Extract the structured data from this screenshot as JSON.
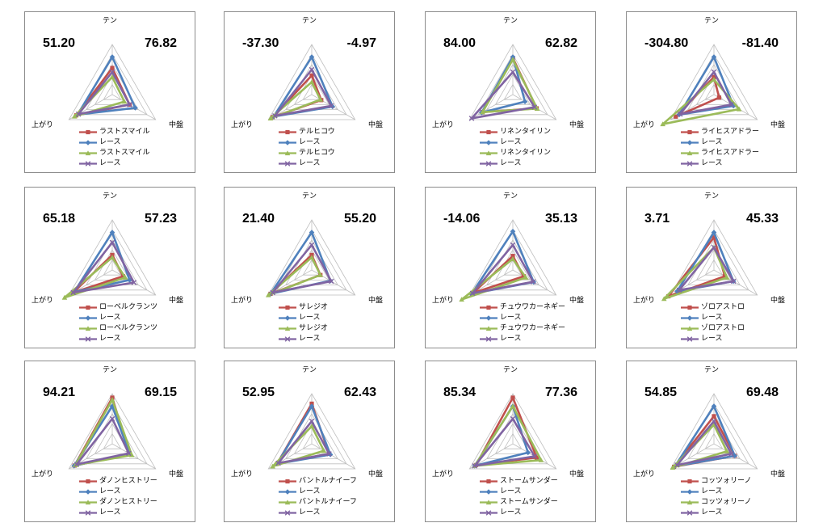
{
  "axis_labels": {
    "top": "テン",
    "bottom_left": "上がり",
    "bottom_right": "中盤"
  },
  "series_colors": [
    "#c0504d",
    "#4f81bd",
    "#9bbb59",
    "#8064a2"
  ],
  "series_markers": [
    "square",
    "diamond",
    "triangle",
    "x"
  ],
  "race_series_name": "レース",
  "chart_data": [
    {
      "type": "radar",
      "title": "",
      "axes": [
        "テン",
        "中盤",
        "上がり"
      ],
      "rmax": 100,
      "left_value": "51.20",
      "right_value": "76.82",
      "horse": "ラストスマイル",
      "series": [
        {
          "name": "ラストスマイル",
          "values": [
            53,
            40,
            83
          ]
        },
        {
          "name": "レース",
          "values": [
            75,
            53,
            80
          ]
        },
        {
          "name": "ラストスマイル",
          "values": [
            35,
            28,
            87
          ]
        },
        {
          "name": "レース",
          "values": [
            45,
            40,
            78
          ]
        }
      ]
    },
    {
      "type": "radar",
      "title": "",
      "axes": [
        "テン",
        "中盤",
        "上がり"
      ],
      "rmax": 100,
      "left_value": "-37.30",
      "right_value": "-4.97",
      "horse": "テルヒコウ",
      "series": [
        {
          "name": "テルヒコウ",
          "values": [
            38,
            22,
            90
          ]
        },
        {
          "name": "レース",
          "values": [
            75,
            48,
            88
          ]
        },
        {
          "name": "テルヒコウ",
          "values": [
            25,
            20,
            95
          ]
        },
        {
          "name": "レース",
          "values": [
            50,
            45,
            85
          ]
        }
      ]
    },
    {
      "type": "radar",
      "title": "",
      "axes": [
        "テン",
        "中盤",
        "上がり"
      ],
      "rmax": 100,
      "left_value": "84.00",
      "right_value": "62.82",
      "horse": "リネンタイリン",
      "series": [
        {
          "name": "リネンタイリン",
          "values": [
            73,
            55,
            70
          ]
        },
        {
          "name": "レース",
          "values": [
            75,
            28,
            72
          ]
        },
        {
          "name": "リネンタイリン",
          "values": [
            70,
            56,
            70
          ]
        },
        {
          "name": "レース",
          "values": [
            45,
            50,
            95
          ]
        }
      ]
    },
    {
      "type": "radar",
      "title": "",
      "axes": [
        "テン",
        "中盤",
        "上がり"
      ],
      "rmax": 100,
      "left_value": "-304.80",
      "right_value": "-81.40",
      "horse": "ライヒスアドラー",
      "series": [
        {
          "name": "ライヒスアドラー",
          "values": [
            35,
            12,
            88
          ]
        },
        {
          "name": "レース",
          "values": [
            75,
            45,
            80
          ]
        },
        {
          "name": "ライヒスアドラー",
          "values": [
            30,
            58,
            118
          ]
        },
        {
          "name": "レース",
          "values": [
            45,
            40,
            78
          ]
        }
      ]
    },
    {
      "type": "radar",
      "title": "",
      "axes": [
        "テン",
        "中盤",
        "上がり"
      ],
      "rmax": 100,
      "left_value": "65.18",
      "right_value": "57.23",
      "horse": "ローベルクランツ",
      "series": [
        {
          "name": "ローベルクランツ",
          "values": [
            30,
            25,
            90
          ]
        },
        {
          "name": "レース",
          "values": [
            75,
            40,
            88
          ]
        },
        {
          "name": "ローベルクランツ",
          "values": [
            25,
            30,
            110
          ]
        },
        {
          "name": "レース",
          "values": [
            55,
            50,
            90
          ]
        }
      ]
    },
    {
      "type": "radar",
      "title": "",
      "axes": [
        "テン",
        "中盤",
        "上がり"
      ],
      "rmax": 100,
      "left_value": "21.40",
      "right_value": "55.20",
      "horse": "サレジオ",
      "series": [
        {
          "name": "サレジオ",
          "values": [
            30,
            20,
            95
          ]
        },
        {
          "name": "レース",
          "values": [
            75,
            43,
            95
          ]
        },
        {
          "name": "サレジオ",
          "values": [
            25,
            20,
            100
          ]
        },
        {
          "name": "レース",
          "values": [
            50,
            45,
            90
          ]
        }
      ]
    },
    {
      "type": "radar",
      "title": "",
      "axes": [
        "テン",
        "中盤",
        "上がり"
      ],
      "rmax": 100,
      "left_value": "-14.06",
      "right_value": "35.13",
      "horse": "チュウワカーネギー",
      "series": [
        {
          "name": "チュウワカーネギー",
          "values": [
            28,
            25,
            92
          ]
        },
        {
          "name": "レース",
          "values": [
            77,
            48,
            95
          ]
        },
        {
          "name": "チュウワカーネギー",
          "values": [
            22,
            30,
            118
          ]
        },
        {
          "name": "レース",
          "values": [
            50,
            47,
            93
          ]
        }
      ]
    },
    {
      "type": "radar",
      "title": "",
      "axes": [
        "テン",
        "中盤",
        "上がり"
      ],
      "rmax": 100,
      "left_value": "3.71",
      "right_value": "45.33",
      "horse": "ゾロアストロ",
      "series": [
        {
          "name": "ゾロアストロ",
          "values": [
            65,
            25,
            105
          ]
        },
        {
          "name": "レース",
          "values": [
            75,
            45,
            85
          ]
        },
        {
          "name": "ゾロアストロ",
          "values": [
            45,
            30,
            115
          ]
        },
        {
          "name": "レース",
          "values": [
            45,
            45,
            80
          ]
        }
      ]
    },
    {
      "type": "radar",
      "title": "",
      "axes": [
        "テン",
        "中盤",
        "上がり"
      ],
      "rmax": 100,
      "left_value": "94.21",
      "right_value": "69.15",
      "horse": "ダノンヒストリー",
      "series": [
        {
          "name": "ダノンヒストリー",
          "values": [
            92,
            40,
            87
          ]
        },
        {
          "name": "レース",
          "values": [
            75,
            40,
            88
          ]
        },
        {
          "name": "ダノンヒストリー",
          "values": [
            88,
            45,
            85
          ]
        },
        {
          "name": "レース",
          "values": [
            50,
            38,
            82
          ]
        }
      ]
    },
    {
      "type": "radar",
      "title": "",
      "axes": [
        "テン",
        "中盤",
        "上がり"
      ],
      "rmax": 100,
      "left_value": "52.95",
      "right_value": "62.43",
      "horse": "バントルナイーフ",
      "series": [
        {
          "name": "バントルナイーフ",
          "values": [
            80,
            40,
            80
          ]
        },
        {
          "name": "レース",
          "values": [
            75,
            43,
            80
          ]
        },
        {
          "name": "バントルナイーフ",
          "values": [
            35,
            28,
            90
          ]
        },
        {
          "name": "レース",
          "values": [
            45,
            40,
            77
          ]
        }
      ]
    },
    {
      "type": "radar",
      "title": "",
      "axes": [
        "テン",
        "中盤",
        "上がり"
      ],
      "rmax": 100,
      "left_value": "85.34",
      "right_value": "77.36",
      "horse": "ストームサンダー",
      "series": [
        {
          "name": "ストームサンダー",
          "values": [
            92,
            55,
            85
          ]
        },
        {
          "name": "レース",
          "values": [
            75,
            35,
            88
          ]
        },
        {
          "name": "ストームサンダー",
          "values": [
            75,
            65,
            88
          ]
        },
        {
          "name": "レース",
          "values": [
            50,
            50,
            88
          ]
        }
      ]
    },
    {
      "type": "radar",
      "title": "",
      "axes": [
        "テン",
        "中盤",
        "上がり"
      ],
      "rmax": 100,
      "left_value": "54.85",
      "right_value": "69.48",
      "horse": "コッツォリーノ",
      "series": [
        {
          "name": "コッツォリーノ",
          "values": [
            55,
            48,
            92
          ]
        },
        {
          "name": "レース",
          "values": [
            75,
            48,
            90
          ]
        },
        {
          "name": "コッツォリーノ",
          "values": [
            38,
            30,
            95
          ]
        },
        {
          "name": "レース",
          "values": [
            45,
            40,
            85
          ]
        }
      ]
    }
  ]
}
